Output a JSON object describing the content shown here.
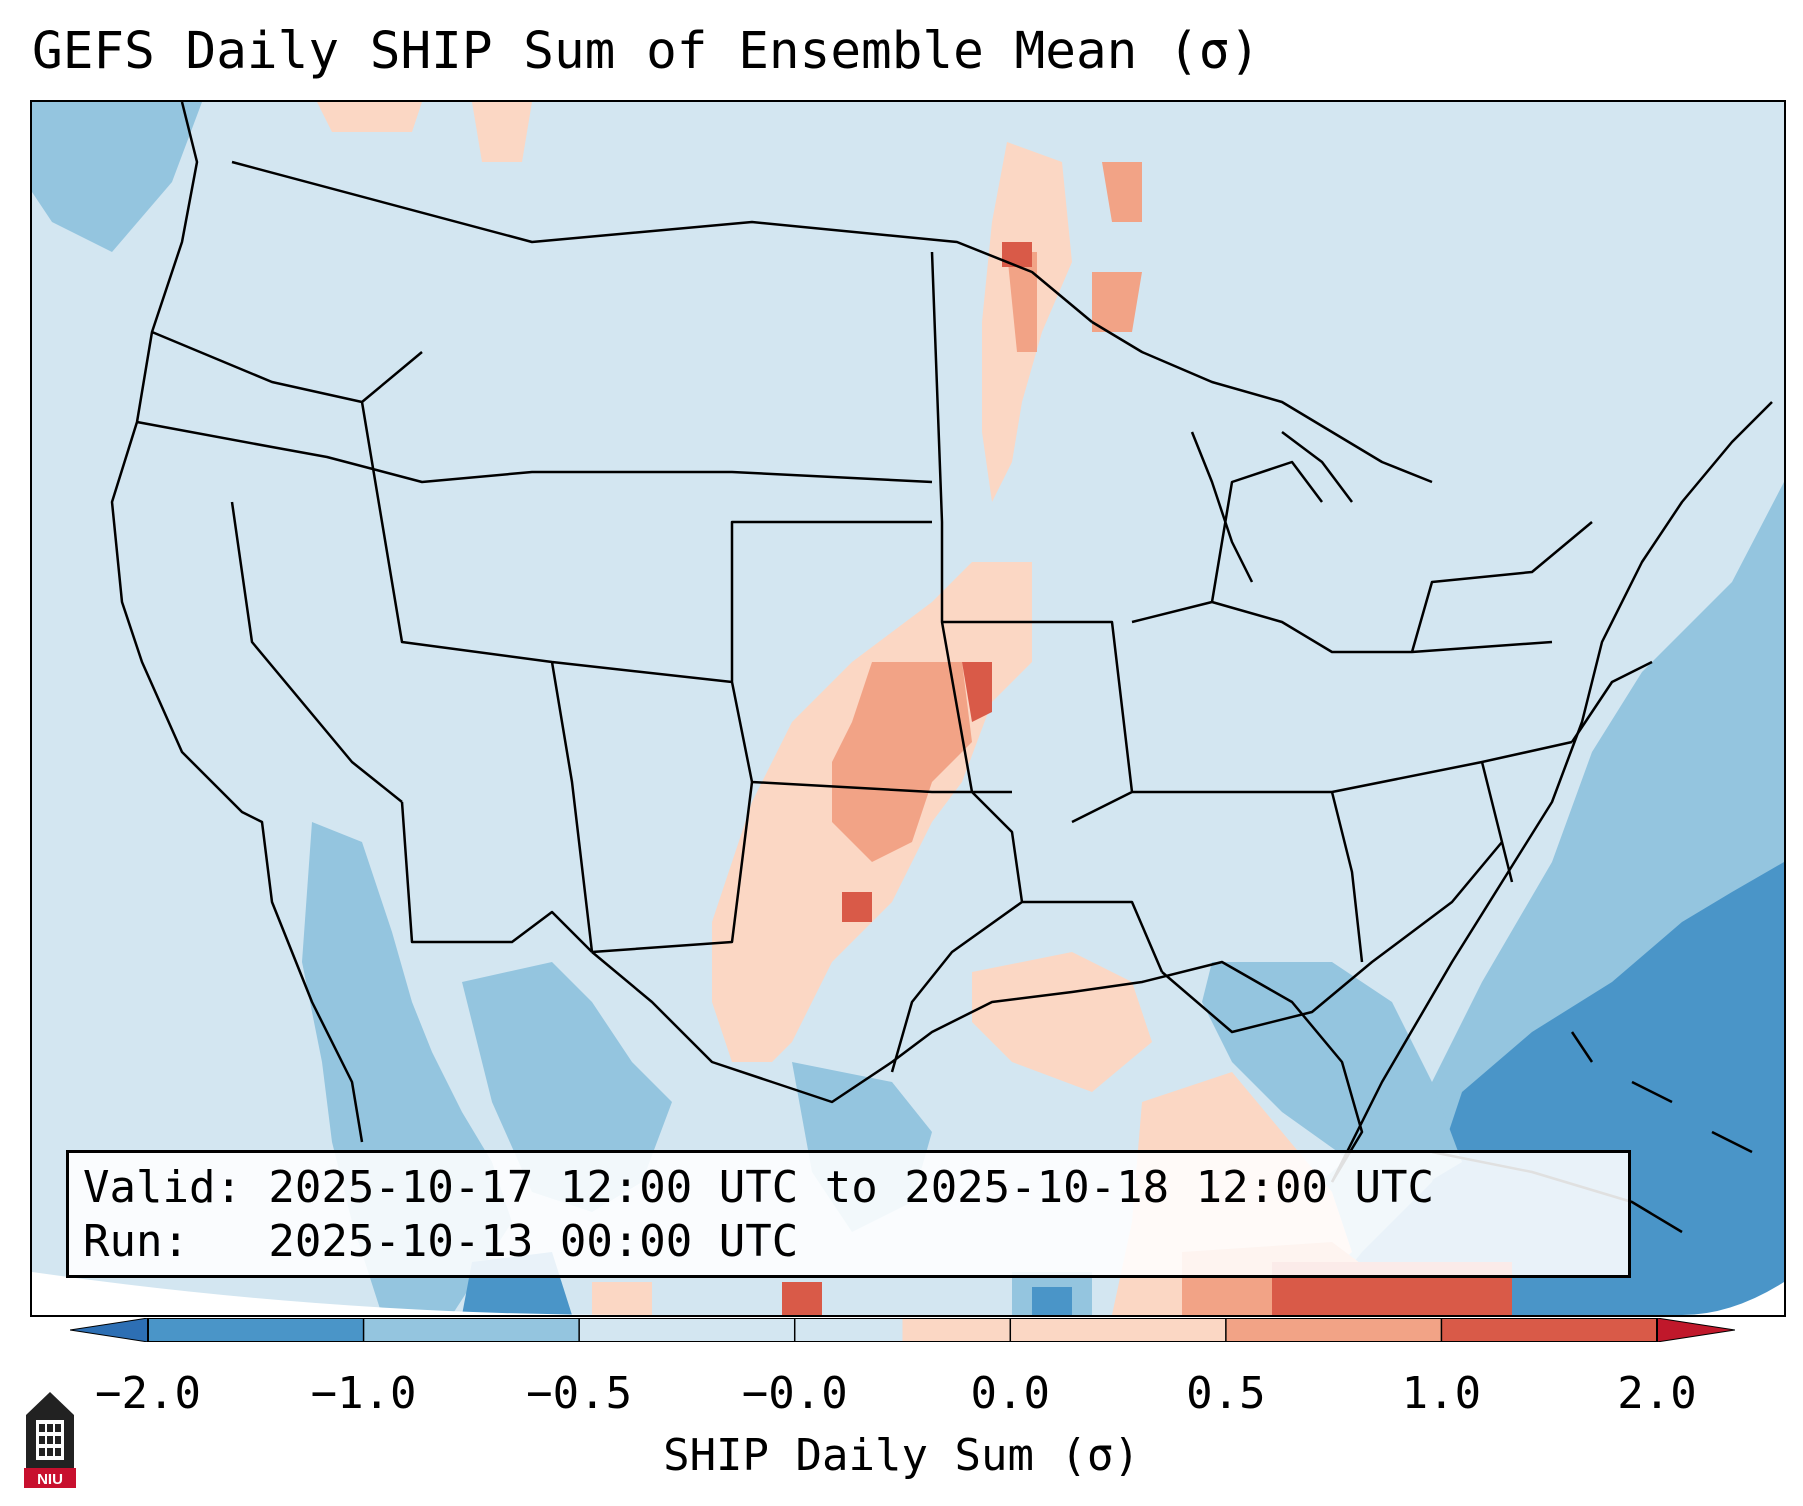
{
  "title": "GEFS Daily SHIP Sum of Ensemble Mean (σ)",
  "info": {
    "valid_line": "Valid: 2025-10-17 12:00 UTC to 2025-10-18 12:00 UTC",
    "run_line": "Run:   2025-10-13 00:00 UTC"
  },
  "colorbar": {
    "label": "SHIP Daily Sum (σ)",
    "ticks": [
      "−2.0",
      "−1.0",
      "−0.5",
      "−0.0",
      "0.0",
      "0.5",
      "1.0",
      "2.0"
    ],
    "colors": [
      "#4a95c8",
      "#94c5df",
      "#d3e6f1",
      "#fbd7c4",
      "#f2a386",
      "#d95a48"
    ],
    "extend_min_color": "#2d6fb4",
    "extend_max_color": "#c0182b"
  },
  "logo": {
    "text": "NIU",
    "icon": "university-tower-icon"
  }
}
